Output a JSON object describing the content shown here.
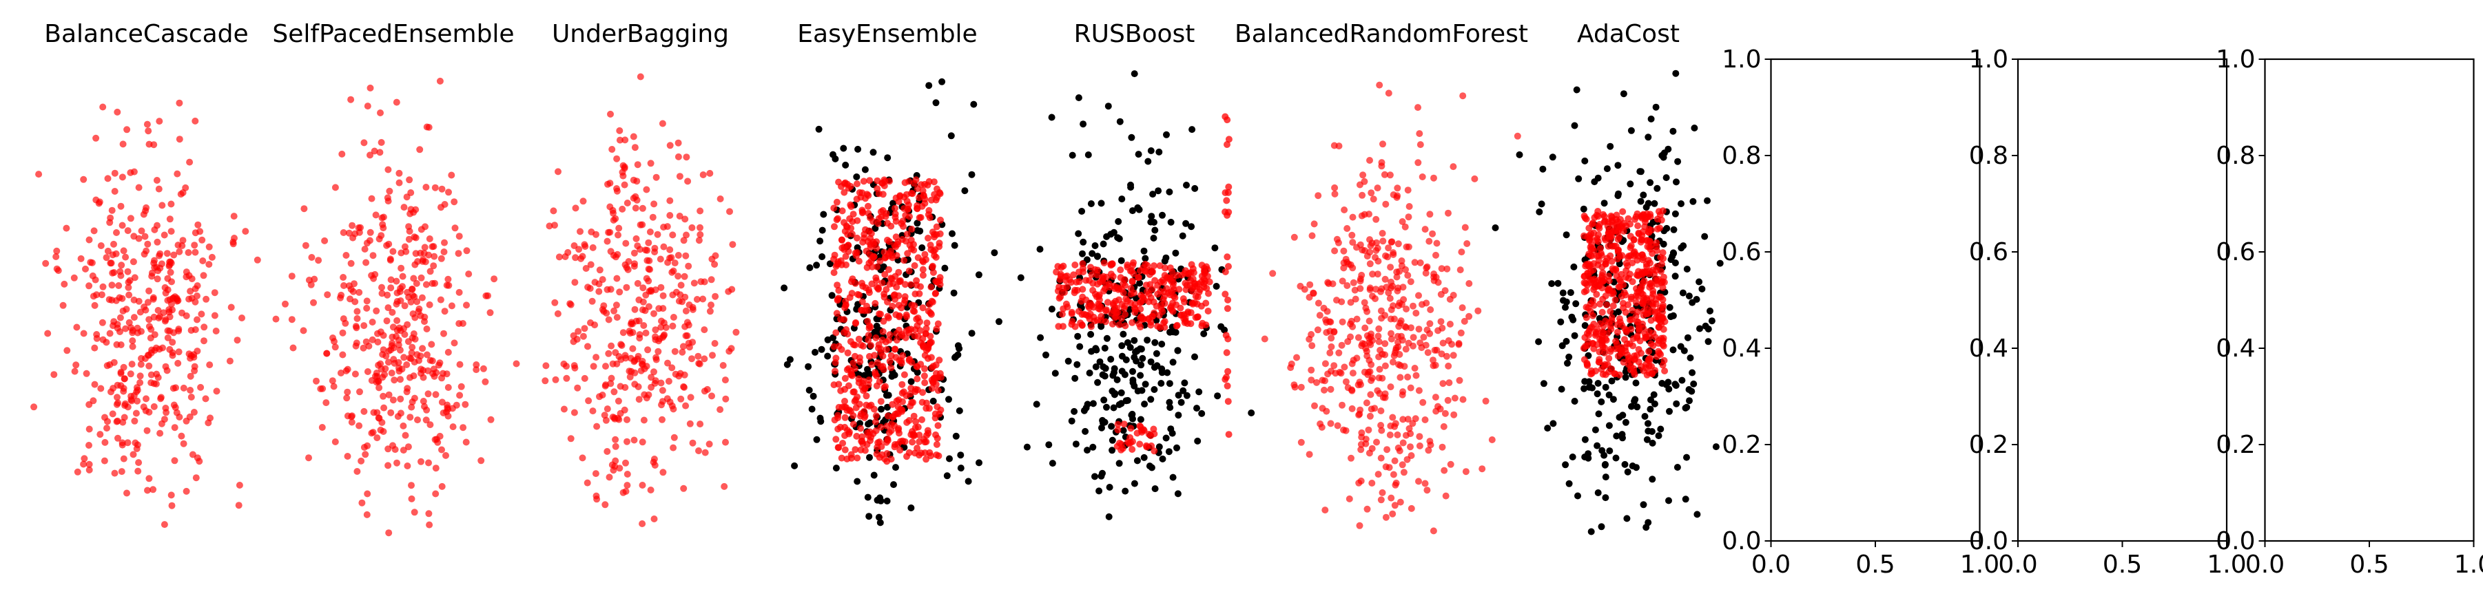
{
  "chart_data": [
    {
      "type": "scatter",
      "title": "BalanceCascade",
      "axis": "off",
      "shape": "blob",
      "n_points": 420,
      "seed": 11,
      "series": [
        {
          "role": "selected",
          "color": "#ff0000",
          "alpha": 0.65
        }
      ]
    },
    {
      "type": "scatter",
      "title": "SelfPacedEnsemble",
      "axis": "off",
      "shape": "blob",
      "n_points": 420,
      "seed": 23,
      "series": [
        {
          "role": "selected",
          "color": "#ff0000",
          "alpha": 0.65
        }
      ]
    },
    {
      "type": "scatter",
      "title": "UnderBagging",
      "axis": "off",
      "shape": "blob",
      "n_points": 420,
      "seed": 37,
      "series": [
        {
          "role": "selected",
          "color": "#ff0000",
          "alpha": 0.65
        }
      ]
    },
    {
      "type": "scatter",
      "title": "EasyEnsemble",
      "axis": "off",
      "shape": "rect",
      "n_points": 260,
      "seed": 41,
      "series": [
        {
          "role": "background",
          "color": "#000000",
          "alpha": 1.0
        },
        {
          "role": "selected",
          "color": "#ff0000",
          "alpha": 0.75,
          "n_points": 650
        }
      ]
    },
    {
      "type": "scatter",
      "title": "RUSBoost",
      "axis": "off",
      "shape": "band",
      "n_points": 320,
      "seed": 53,
      "series": [
        {
          "role": "background",
          "color": "#000000",
          "alpha": 1.0
        },
        {
          "role": "selected",
          "color": "#ff0000",
          "alpha": 0.75,
          "n_points": 380
        }
      ]
    },
    {
      "type": "scatter",
      "title": "BalancedRandomForest",
      "axis": "off",
      "shape": "blob",
      "n_points": 480,
      "seed": 67,
      "series": [
        {
          "role": "selected",
          "color": "#ff0000",
          "alpha": 0.65
        }
      ]
    },
    {
      "type": "scatter",
      "title": "AdaCost",
      "axis": "off",
      "shape": "rect-narrow",
      "n_points": 320,
      "seed": 79,
      "series": [
        {
          "role": "background",
          "color": "#000000",
          "alpha": 1.0
        },
        {
          "role": "selected",
          "color": "#ff0000",
          "alpha": 0.75,
          "n_points": 520
        }
      ]
    },
    {
      "type": "empty",
      "title": "",
      "axis": "on",
      "xlim": [
        0.0,
        1.0
      ],
      "ylim": [
        0.0,
        1.0
      ],
      "xticks": [
        "0.0",
        "0.5",
        "1.0"
      ],
      "yticks": [
        "0.0",
        "0.2",
        "0.4",
        "0.6",
        "0.8",
        "1.0"
      ]
    },
    {
      "type": "empty",
      "title": "",
      "axis": "on",
      "xlim": [
        0.0,
        1.0
      ],
      "ylim": [
        0.0,
        1.0
      ],
      "xticks": [
        "0.0",
        "0.5",
        "1.0"
      ],
      "yticks": [
        "0.0",
        "0.2",
        "0.4",
        "0.6",
        "0.8",
        "1.0"
      ]
    },
    {
      "type": "empty",
      "title": "",
      "axis": "on",
      "xlim": [
        0.0,
        1.0
      ],
      "ylim": [
        0.0,
        1.0
      ],
      "xticks": [
        "0.0",
        "0.5",
        "1.0"
      ],
      "yticks": [
        "0.0",
        "0.2",
        "0.4",
        "0.6",
        "0.8",
        "1.0"
      ]
    }
  ]
}
